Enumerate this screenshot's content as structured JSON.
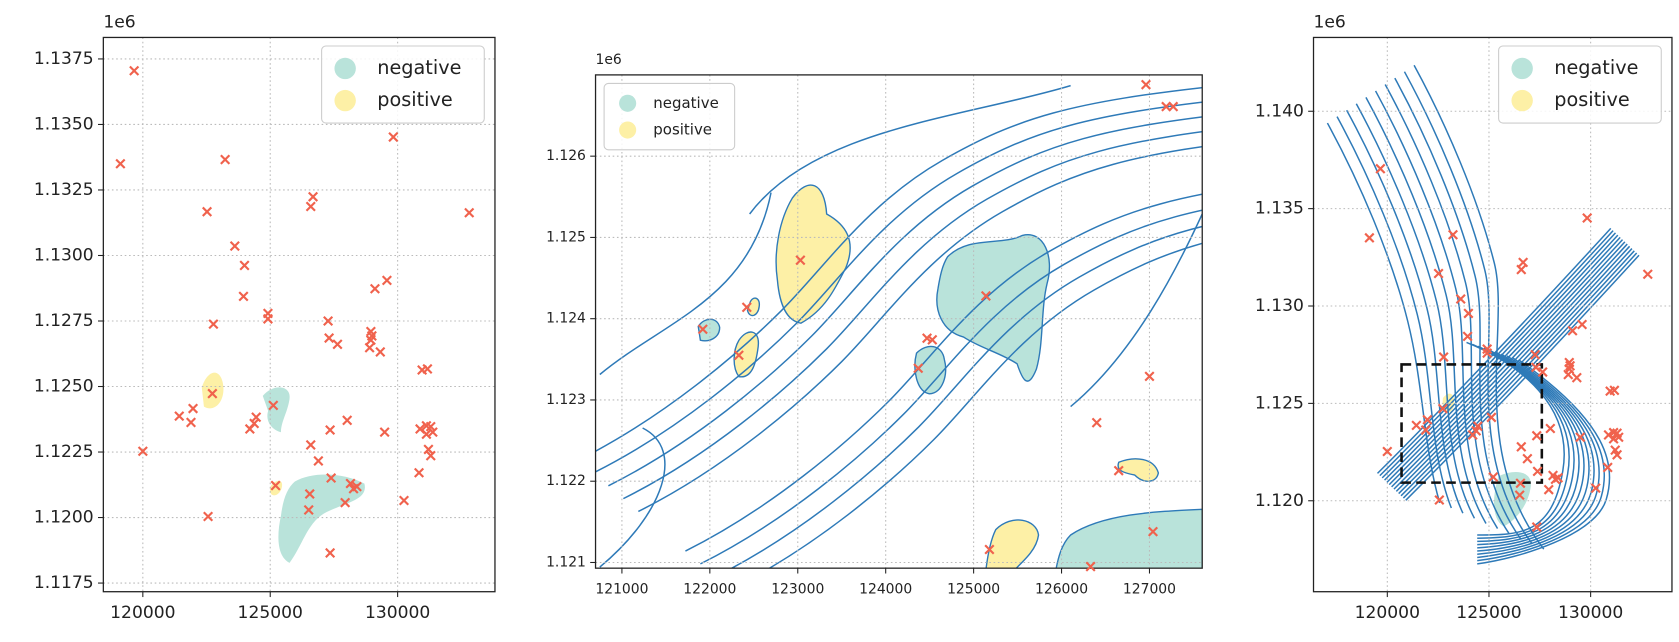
{
  "chart_data": [
    {
      "type": "scatter",
      "y_offset_label": "1e6",
      "xlim": [
        118450,
        133820
      ],
      "ylim": [
        1.11717,
        1.13832
      ],
      "xticks": [
        120000,
        125000,
        130000
      ],
      "yticks": [
        1.1175,
        {
          "value": 1.12,
          "label": "1.1200"
        },
        1.1225,
        {
          "value": 1.125,
          "label": "1.1250"
        },
        1.1275,
        {
          "value": 1.13,
          "label": "1.1300"
        },
        1.1325,
        {
          "value": 1.135,
          "label": "1.1350"
        },
        1.1375
      ],
      "grid": true,
      "marker_color": "#f0624d",
      "x": [
        119660,
        119120,
        123230,
        122520,
        123610,
        123990,
        123950,
        122770,
        124910,
        124910,
        126680,
        126590,
        127270,
        127310,
        127640,
        128950,
        128950,
        128900,
        129320,
        128990,
        129110,
        129580,
        129830,
        132810,
        131170,
        130960,
        121430,
        121970,
        121890,
        122730,
        120000,
        125120,
        124450,
        124370,
        124200,
        122560,
        125210,
        126590,
        126890,
        126550,
        126510,
        127390,
        127350,
        128020,
        127940,
        128150,
        128400,
        128270,
        127350,
        129490,
        130840,
        130250,
        131130,
        131300,
        131380,
        131210,
        131300,
        131130,
        130880
      ],
      "values": [
        1.13705,
        1.1335,
        1.13366,
        1.13167,
        1.13036,
        1.12962,
        1.12844,
        1.12738,
        1.12779,
        1.12758,
        1.13224,
        1.13187,
        1.1275,
        1.12685,
        1.12661,
        1.1271,
        1.12677,
        1.12648,
        1.12632,
        1.12693,
        1.12873,
        1.12905,
        1.13452,
        1.13163,
        1.12567,
        1.12563,
        1.12387,
        1.12416,
        1.12363,
        1.12473,
        1.12253,
        1.12428,
        1.12383,
        1.12359,
        1.12338,
        1.12004,
        1.12122,
        1.12277,
        1.12216,
        1.1209,
        1.12029,
        1.12151,
        1.12334,
        1.12371,
        1.12057,
        1.1213,
        1.12118,
        1.1211,
        1.11865,
        1.12326,
        1.12171,
        1.12065,
        1.1235,
        1.12347,
        1.12326,
        1.1226,
        1.12236,
        1.12318,
        1.12338
      ],
      "legend": {
        "loc": "upper right",
        "entries": [
          {
            "name": "negative",
            "color": "#b9e3da"
          },
          {
            "name": "positive",
            "color": "#fdf0a6"
          }
        ]
      }
    },
    {
      "type": "scatter",
      "y_offset_label": "1e6",
      "xlim": [
        120700,
        127600
      ],
      "ylim": [
        1.12093,
        1.127
      ],
      "xticks": [
        121000,
        122000,
        123000,
        124000,
        125000,
        126000,
        127000
      ],
      "yticks": [
        1.121,
        1.122,
        1.123,
        1.124,
        1.125,
        1.126
      ],
      "grid": true,
      "marker_color": "#f0624d",
      "x": [
        123030,
        121920,
        122330,
        122420,
        125140,
        124470,
        124530,
        124370,
        127000,
        126400,
        126650,
        125180,
        127040,
        126960,
        127190,
        127270,
        126330
      ],
      "values": [
        1.12472,
        1.12387,
        1.12355,
        1.12414,
        1.12428,
        1.12376,
        1.12374,
        1.12339,
        1.12329,
        1.12272,
        1.12213,
        1.12116,
        1.12138,
        1.12688,
        1.12661,
        1.12661,
        1.12095
      ],
      "legend": {
        "loc": "upper left",
        "entries": [
          {
            "name": "negative",
            "color": "#b9e3da"
          },
          {
            "name": "positive",
            "color": "#fdf0a6"
          }
        ]
      }
    },
    {
      "type": "scatter",
      "y_offset_label": "1e6",
      "xlim": [
        116370,
        134000
      ],
      "ylim": [
        1.11533,
        1.14379
      ],
      "xticks": [
        120000,
        125000,
        130000
      ],
      "yticks": [
        {
          "value": 1.12,
          "label": "1.120"
        },
        1.125,
        {
          "value": 1.13,
          "label": "1.130"
        },
        1.135,
        {
          "value": 1.14,
          "label": "1.140"
        }
      ],
      "grid": true,
      "marker_color": "#f0624d",
      "x": [
        119660,
        119120,
        123230,
        122520,
        123610,
        123990,
        123950,
        122770,
        124910,
        124910,
        126680,
        126590,
        127270,
        127310,
        127640,
        128950,
        128950,
        128900,
        129320,
        128990,
        129110,
        129580,
        129830,
        132810,
        131170,
        130960,
        121430,
        121970,
        121890,
        122730,
        120000,
        125120,
        124450,
        124370,
        124200,
        122560,
        125210,
        126590,
        126890,
        126550,
        126510,
        127390,
        127350,
        128020,
        127940,
        128150,
        128400,
        128270,
        127350,
        129490,
        130840,
        130250,
        131130,
        131300,
        131380,
        131210,
        131300,
        131130,
        130880
      ],
      "values": [
        1.13705,
        1.1335,
        1.13366,
        1.13167,
        1.13036,
        1.12962,
        1.12844,
        1.12738,
        1.12779,
        1.12758,
        1.13224,
        1.13187,
        1.1275,
        1.12685,
        1.12661,
        1.1271,
        1.12677,
        1.12648,
        1.12632,
        1.12693,
        1.12873,
        1.12905,
        1.13452,
        1.13163,
        1.12567,
        1.12563,
        1.12387,
        1.12416,
        1.12363,
        1.12473,
        1.12253,
        1.12428,
        1.12383,
        1.12359,
        1.12338,
        1.12004,
        1.12122,
        1.12277,
        1.12216,
        1.1209,
        1.12029,
        1.12151,
        1.12334,
        1.12371,
        1.12057,
        1.1213,
        1.12118,
        1.1211,
        1.11865,
        1.12326,
        1.12171,
        1.12065,
        1.1235,
        1.12347,
        1.12326,
        1.1226,
        1.12236,
        1.12318,
        1.12338
      ],
      "legend": {
        "loc": "upper right",
        "entries": [
          {
            "name": "negative",
            "color": "#b9e3da"
          },
          {
            "name": "positive",
            "color": "#fdf0a6"
          }
        ]
      }
    }
  ]
}
